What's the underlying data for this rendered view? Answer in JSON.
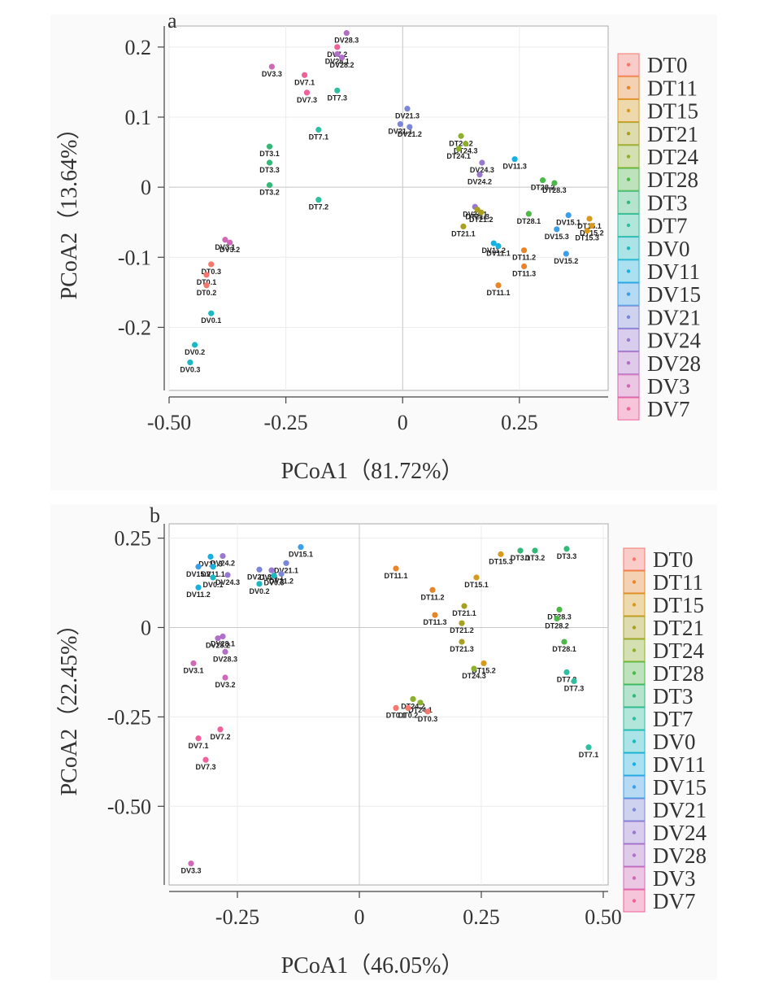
{
  "legend": {
    "entries": [
      {
        "name": "DT0",
        "color": "#f8766d"
      },
      {
        "name": "DT11",
        "color": "#e8852a"
      },
      {
        "name": "DT15",
        "color": "#d89a1c"
      },
      {
        "name": "DT21",
        "color": "#a8a020"
      },
      {
        "name": "DT24",
        "color": "#8cb02a"
      },
      {
        "name": "DT28",
        "color": "#4cb848"
      },
      {
        "name": "DT3",
        "color": "#33b87a"
      },
      {
        "name": "DT7",
        "color": "#2cbfa0"
      },
      {
        "name": "DV0",
        "color": "#1ab8c0"
      },
      {
        "name": "DV11",
        "color": "#18b0e0"
      },
      {
        "name": "DV15",
        "color": "#3a9ee8"
      },
      {
        "name": "DV21",
        "color": "#7b86d8"
      },
      {
        "name": "DV24",
        "color": "#9878d0"
      },
      {
        "name": "DV28",
        "color": "#b070c8"
      },
      {
        "name": "DV3",
        "color": "#d068b8"
      },
      {
        "name": "DV7",
        "color": "#f0609a"
      }
    ]
  },
  "chart_data": [
    {
      "type": "scatter",
      "panel_label": "a",
      "title": "",
      "xlabel": "PCoA1（81.72%）",
      "ylabel": "PCoA2（13.64%）",
      "xlim": [
        -0.5,
        0.44
      ],
      "ylim": [
        -0.29,
        0.23
      ],
      "xticks": [
        -0.5,
        -0.25,
        0,
        0.25
      ],
      "xtick_labels": [
        "-0.50",
        "-0.25",
        "0",
        "0.25"
      ],
      "yticks": [
        0.2,
        0.1,
        0,
        -0.1,
        -0.2
      ],
      "ytick_labels": [
        "0.2",
        "0.1",
        "0",
        "-0.1",
        "-0.2"
      ],
      "grid": true,
      "legend_position": "right",
      "points": [
        {
          "label": "DV28.3",
          "group": "DV28",
          "x": -0.12,
          "y": 0.22
        },
        {
          "label": "DV7.2",
          "group": "DV7",
          "x": -0.14,
          "y": 0.2
        },
        {
          "label": "DV28.1",
          "group": "DV28",
          "x": -0.14,
          "y": 0.19
        },
        {
          "label": "DV28.2",
          "group": "DV28",
          "x": -0.13,
          "y": 0.185
        },
        {
          "label": "DV3.3",
          "group": "DV3",
          "x": -0.28,
          "y": 0.172
        },
        {
          "label": "DV7.1",
          "group": "DV7",
          "x": -0.21,
          "y": 0.16
        },
        {
          "label": "DV7.3",
          "group": "DV7",
          "x": -0.205,
          "y": 0.135
        },
        {
          "label": "DT7.3",
          "group": "DT7",
          "x": -0.14,
          "y": 0.138
        },
        {
          "label": "DT7.1",
          "group": "DT7",
          "x": -0.18,
          "y": 0.082
        },
        {
          "label": "DT3.1",
          "group": "DT3",
          "x": -0.285,
          "y": 0.058
        },
        {
          "label": "DT3.3",
          "group": "DT3",
          "x": -0.285,
          "y": 0.035
        },
        {
          "label": "DT3.2",
          "group": "DT3",
          "x": -0.285,
          "y": 0.003
        },
        {
          "label": "DT7.2",
          "group": "DT7",
          "x": -0.18,
          "y": -0.018
        },
        {
          "label": "DV21.3",
          "group": "DV21",
          "x": 0.01,
          "y": 0.112
        },
        {
          "label": "DV21.1",
          "group": "DV21",
          "x": -0.005,
          "y": 0.09
        },
        {
          "label": "DV21.2",
          "group": "DV21",
          "x": 0.015,
          "y": 0.086
        },
        {
          "label": "DT24.2",
          "group": "DT24",
          "x": 0.125,
          "y": 0.073
        },
        {
          "label": "DT24.3",
          "group": "DT24",
          "x": 0.135,
          "y": 0.062
        },
        {
          "label": "DT24.1",
          "group": "DT24",
          "x": 0.12,
          "y": 0.055
        },
        {
          "label": "DV24.3",
          "group": "DV24",
          "x": 0.17,
          "y": 0.035
        },
        {
          "label": "DV24.2",
          "group": "DV24",
          "x": 0.165,
          "y": 0.018
        },
        {
          "label": "DV11.3",
          "group": "DV11",
          "x": 0.24,
          "y": 0.04
        },
        {
          "label": "DT28.2",
          "group": "DT28",
          "x": 0.3,
          "y": 0.01
        },
        {
          "label": "DT28.3",
          "group": "DT28",
          "x": 0.325,
          "y": 0.006
        },
        {
          "label": "DV24.1",
          "group": "DV24",
          "x": 0.155,
          "y": -0.028
        },
        {
          "label": "DT21.3",
          "group": "DT21",
          "x": 0.16,
          "y": -0.032
        },
        {
          "label": "DT21.2",
          "group": "DT21",
          "x": 0.168,
          "y": -0.036
        },
        {
          "label": "DT21.1",
          "group": "DT21",
          "x": 0.13,
          "y": -0.056
        },
        {
          "label": "DT28.1",
          "group": "DT28",
          "x": 0.27,
          "y": -0.038
        },
        {
          "label": "DV15.1",
          "group": "DV15",
          "x": 0.355,
          "y": -0.04
        },
        {
          "label": "DT15.1",
          "group": "DT15",
          "x": 0.4,
          "y": -0.045
        },
        {
          "label": "DT15.2",
          "group": "DT15",
          "x": 0.405,
          "y": -0.055
        },
        {
          "label": "DT15.3",
          "group": "DT15",
          "x": 0.395,
          "y": -0.062
        },
        {
          "label": "DV15.3",
          "group": "DV15",
          "x": 0.33,
          "y": -0.06
        },
        {
          "label": "DV11.2",
          "group": "DV11",
          "x": 0.195,
          "y": -0.08
        },
        {
          "label": "DV11.1",
          "group": "DV11",
          "x": 0.205,
          "y": -0.084
        },
        {
          "label": "DT11.2",
          "group": "DT11",
          "x": 0.26,
          "y": -0.09
        },
        {
          "label": "DV15.2",
          "group": "DV15",
          "x": 0.35,
          "y": -0.095
        },
        {
          "label": "DT11.3",
          "group": "DT11",
          "x": 0.26,
          "y": -0.113
        },
        {
          "label": "DT11.1",
          "group": "DT11",
          "x": 0.205,
          "y": -0.14
        },
        {
          "label": "DV3.1",
          "group": "DV3",
          "x": -0.38,
          "y": -0.075
        },
        {
          "label": "DV3.2",
          "group": "DV3",
          "x": -0.37,
          "y": -0.079
        },
        {
          "label": "DT0.3",
          "group": "DT0",
          "x": -0.41,
          "y": -0.11
        },
        {
          "label": "DT0.1",
          "group": "DT0",
          "x": -0.42,
          "y": -0.125
        },
        {
          "label": "DT0.2",
          "group": "DT0",
          "x": -0.42,
          "y": -0.14
        },
        {
          "label": "DV0.1",
          "group": "DV0",
          "x": -0.41,
          "y": -0.18
        },
        {
          "label": "DV0.2",
          "group": "DV0",
          "x": -0.445,
          "y": -0.225
        },
        {
          "label": "DV0.3",
          "group": "DV0",
          "x": -0.455,
          "y": -0.25
        }
      ]
    },
    {
      "type": "scatter",
      "panel_label": "b",
      "title": "",
      "xlabel": "PCoA1（46.05%）",
      "ylabel": "PCoA2（22.45%）",
      "xlim": [
        -0.39,
        0.51
      ],
      "ylim": [
        -0.72,
        0.29
      ],
      "xticks": [
        -0.25,
        0,
        0.25,
        0.5
      ],
      "xtick_labels": [
        "-0.25",
        "0",
        "0.25",
        "0.50"
      ],
      "yticks": [
        0.25,
        0,
        -0.25,
        -0.5
      ],
      "ytick_labels": [
        "0.25",
        "0",
        "-0.25",
        "-0.50"
      ],
      "grid": true,
      "legend_position": "right",
      "points": [
        {
          "label": "DV15.1",
          "group": "DV15",
          "x": -0.12,
          "y": 0.225
        },
        {
          "label": "DV11.3",
          "group": "DV11",
          "x": -0.305,
          "y": 0.198
        },
        {
          "label": "DV24.2",
          "group": "DV24",
          "x": -0.28,
          "y": 0.2
        },
        {
          "label": "DV15.2",
          "group": "DV15",
          "x": -0.33,
          "y": 0.17
        },
        {
          "label": "DV11.1",
          "group": "DV11",
          "x": -0.3,
          "y": 0.17
        },
        {
          "label": "DV0.1",
          "group": "DV0",
          "x": -0.3,
          "y": 0.14
        },
        {
          "label": "DV24.3",
          "group": "DV24",
          "x": -0.27,
          "y": 0.147
        },
        {
          "label": "DV11.2",
          "group": "DV11",
          "x": -0.33,
          "y": 0.112
        },
        {
          "label": "DV21.1",
          "group": "DV21",
          "x": -0.15,
          "y": 0.18
        },
        {
          "label": "DV21.3",
          "group": "DV21",
          "x": -0.205,
          "y": 0.162
        },
        {
          "label": "DV24.1",
          "group": "DV24",
          "x": -0.18,
          "y": 0.16
        },
        {
          "label": "DV0.3",
          "group": "DV0",
          "x": -0.175,
          "y": 0.145
        },
        {
          "label": "DV21.2",
          "group": "DV21",
          "x": -0.16,
          "y": 0.15
        },
        {
          "label": "DV0.2",
          "group": "DV0",
          "x": -0.205,
          "y": 0.122
        },
        {
          "label": "DV28.1",
          "group": "DV28",
          "x": -0.28,
          "y": -0.025
        },
        {
          "label": "DV28.2",
          "group": "DV28",
          "x": -0.29,
          "y": -0.03
        },
        {
          "label": "DV28.3",
          "group": "DV28",
          "x": -0.275,
          "y": -0.068
        },
        {
          "label": "DV3.1",
          "group": "DV3",
          "x": -0.34,
          "y": -0.1
        },
        {
          "label": "DV3.2",
          "group": "DV3",
          "x": -0.275,
          "y": -0.14
        },
        {
          "label": "DV7.2",
          "group": "DV7",
          "x": -0.285,
          "y": -0.285
        },
        {
          "label": "DV7.1",
          "group": "DV7",
          "x": -0.33,
          "y": -0.31
        },
        {
          "label": "DV7.3",
          "group": "DV7",
          "x": -0.315,
          "y": -0.37
        },
        {
          "label": "DV3.3",
          "group": "DV3",
          "x": -0.345,
          "y": -0.66
        },
        {
          "label": "DT11.1",
          "group": "DT11",
          "x": 0.075,
          "y": 0.165
        },
        {
          "label": "DT11.2",
          "group": "DT11",
          "x": 0.15,
          "y": 0.105
        },
        {
          "label": "DT11.3",
          "group": "DT11",
          "x": 0.155,
          "y": 0.035
        },
        {
          "label": "DT15.1",
          "group": "DT15",
          "x": 0.24,
          "y": 0.14
        },
        {
          "label": "DT15.3",
          "group": "DT15",
          "x": 0.29,
          "y": 0.205
        },
        {
          "label": "DT15.2",
          "group": "DT15",
          "x": 0.255,
          "y": -0.1
        },
        {
          "label": "DT3.1",
          "group": "DT3",
          "x": 0.33,
          "y": 0.215
        },
        {
          "label": "DT3.2",
          "group": "DT3",
          "x": 0.36,
          "y": 0.215
        },
        {
          "label": "DT3.3",
          "group": "DT3",
          "x": 0.425,
          "y": 0.22
        },
        {
          "label": "DT21.1",
          "group": "DT21",
          "x": 0.215,
          "y": 0.06
        },
        {
          "label": "DT21.2",
          "group": "DT21",
          "x": 0.21,
          "y": 0.012
        },
        {
          "label": "DT21.3",
          "group": "DT21",
          "x": 0.21,
          "y": -0.04
        },
        {
          "label": "DT24.3",
          "group": "DT24",
          "x": 0.235,
          "y": -0.115
        },
        {
          "label": "DT28.3",
          "group": "DT28",
          "x": 0.41,
          "y": 0.05
        },
        {
          "label": "DT28.2",
          "group": "DT28",
          "x": 0.405,
          "y": 0.025
        },
        {
          "label": "DT28.1",
          "group": "DT28",
          "x": 0.42,
          "y": -0.04
        },
        {
          "label": "DT7.2",
          "group": "DT7",
          "x": 0.425,
          "y": -0.125
        },
        {
          "label": "DT7.3",
          "group": "DT7",
          "x": 0.44,
          "y": -0.15
        },
        {
          "label": "DT7.1",
          "group": "DT7",
          "x": 0.47,
          "y": -0.335
        },
        {
          "label": "DT24.2",
          "group": "DT24",
          "x": 0.11,
          "y": -0.2
        },
        {
          "label": "DT24.1",
          "group": "DT24",
          "x": 0.125,
          "y": -0.21
        },
        {
          "label": "DT0.1",
          "group": "DT0",
          "x": 0.075,
          "y": -0.225
        },
        {
          "label": "DT0.2",
          "group": "DT0",
          "x": 0.1,
          "y": -0.225
        },
        {
          "label": "DT0.3",
          "group": "DT0",
          "x": 0.14,
          "y": -0.235
        }
      ]
    }
  ]
}
